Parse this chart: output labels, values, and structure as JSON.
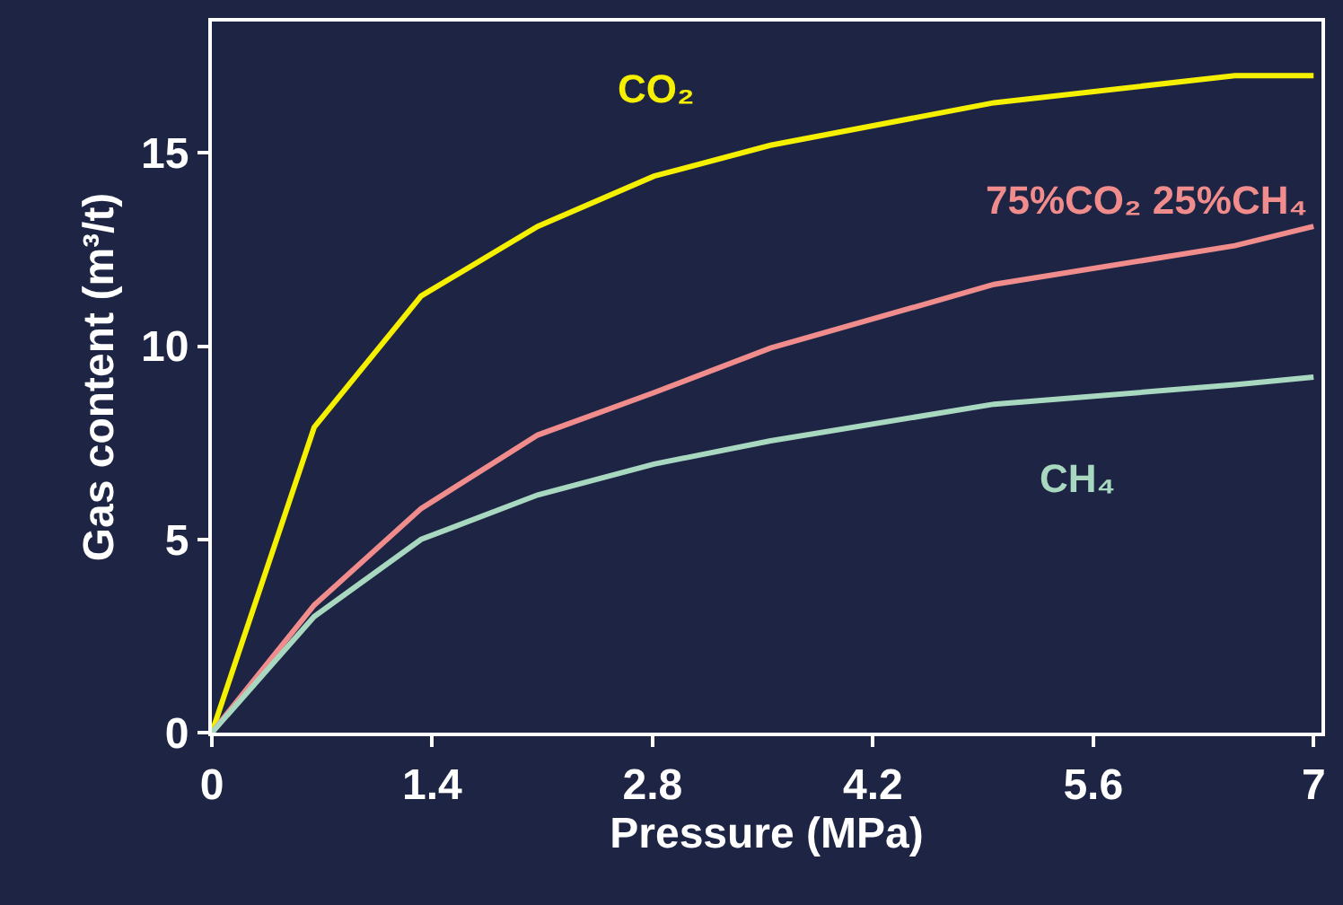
{
  "chart_data": {
    "type": "line",
    "xlabel": "Pressure (MPa)",
    "ylabel": "Gas content (m³/t)",
    "xlim": [
      0,
      7.05
    ],
    "ylim": [
      0,
      18.4
    ],
    "xticks": [
      0,
      1.4,
      2.8,
      4.2,
      5.6,
      7
    ],
    "yticks": [
      0,
      5,
      10,
      15
    ],
    "grid": false,
    "legend": false,
    "marker": "none",
    "line_style": "solid",
    "x": [
      0,
      0.65,
      1.33,
      2.07,
      2.81,
      3.55,
      4.97,
      6.5,
      7
    ],
    "series": [
      {
        "name": "CO₂",
        "color": "#f5f000",
        "values": [
          0,
          7.9,
          11.3,
          13.1,
          14.4,
          15.2,
          16.3,
          17.0,
          17.0
        ]
      },
      {
        "name": "75%CO₂ 25%CH₄",
        "color": "#f08c8c",
        "values": [
          0,
          3.3,
          5.8,
          7.7,
          8.8,
          9.95,
          11.6,
          12.6,
          13.1
        ]
      },
      {
        "name": "CH₄",
        "color": "#a8d8c0",
        "values": [
          0,
          3.0,
          5.0,
          6.15,
          6.95,
          7.55,
          8.5,
          9.0,
          9.2
        ]
      }
    ]
  }
}
